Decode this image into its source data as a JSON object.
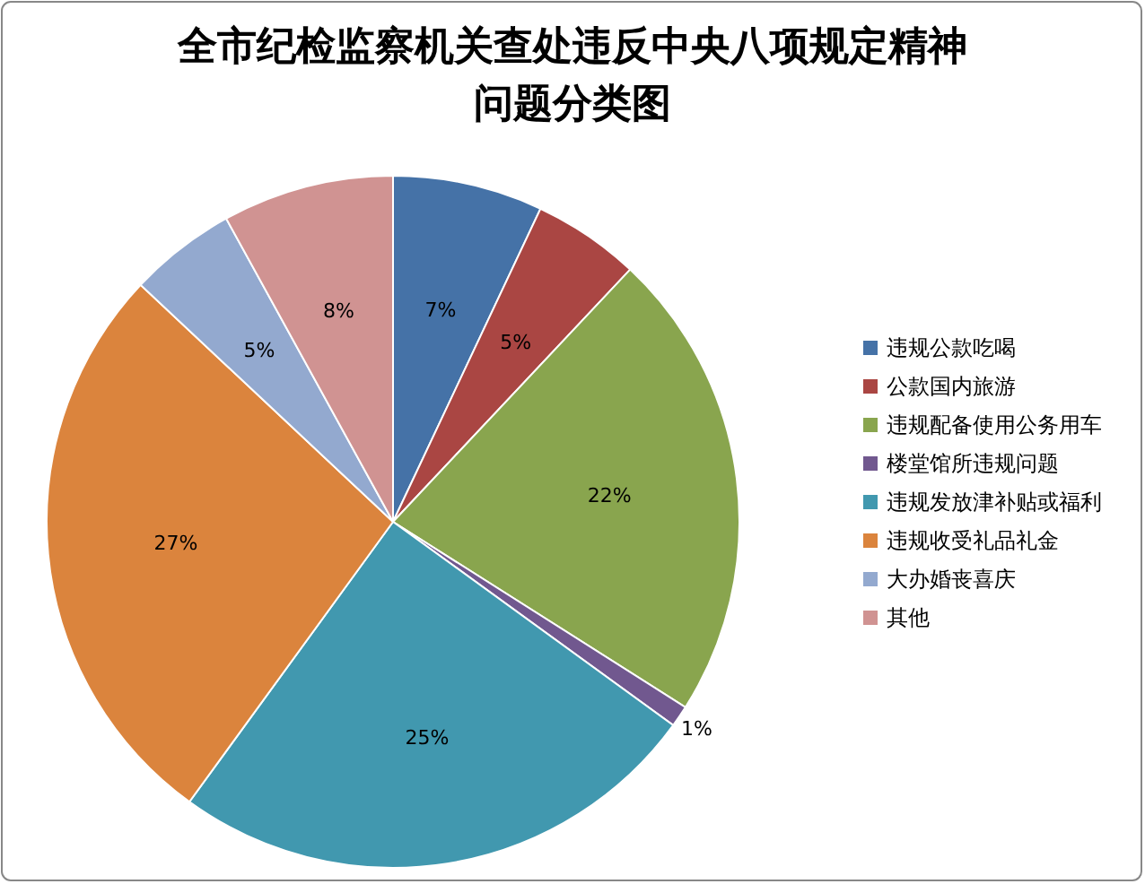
{
  "chart_data": {
    "type": "pie",
    "title": "全市纪检监察机关查处违反中央八项规定精神问题分类图",
    "categories": [
      "违规公款吃喝",
      "公款国内旅游",
      "违规配备使用公务用车",
      "楼堂馆所违规问题",
      "违规发放津补贴或福利",
      "违规收受礼品礼金",
      "大办婚丧喜庆",
      "其他"
    ],
    "values": [
      7,
      5,
      22,
      1,
      25,
      27,
      5,
      8
    ],
    "colors": [
      "#4572a7",
      "#aa4643",
      "#89a54e",
      "#71588f",
      "#4198af",
      "#db843d",
      "#93a9cf",
      "#d09392"
    ],
    "value_labels": [
      "7%",
      "5%",
      "22%",
      "1%",
      "25%",
      "27%",
      "5%",
      "8%"
    ],
    "legend": "right"
  }
}
